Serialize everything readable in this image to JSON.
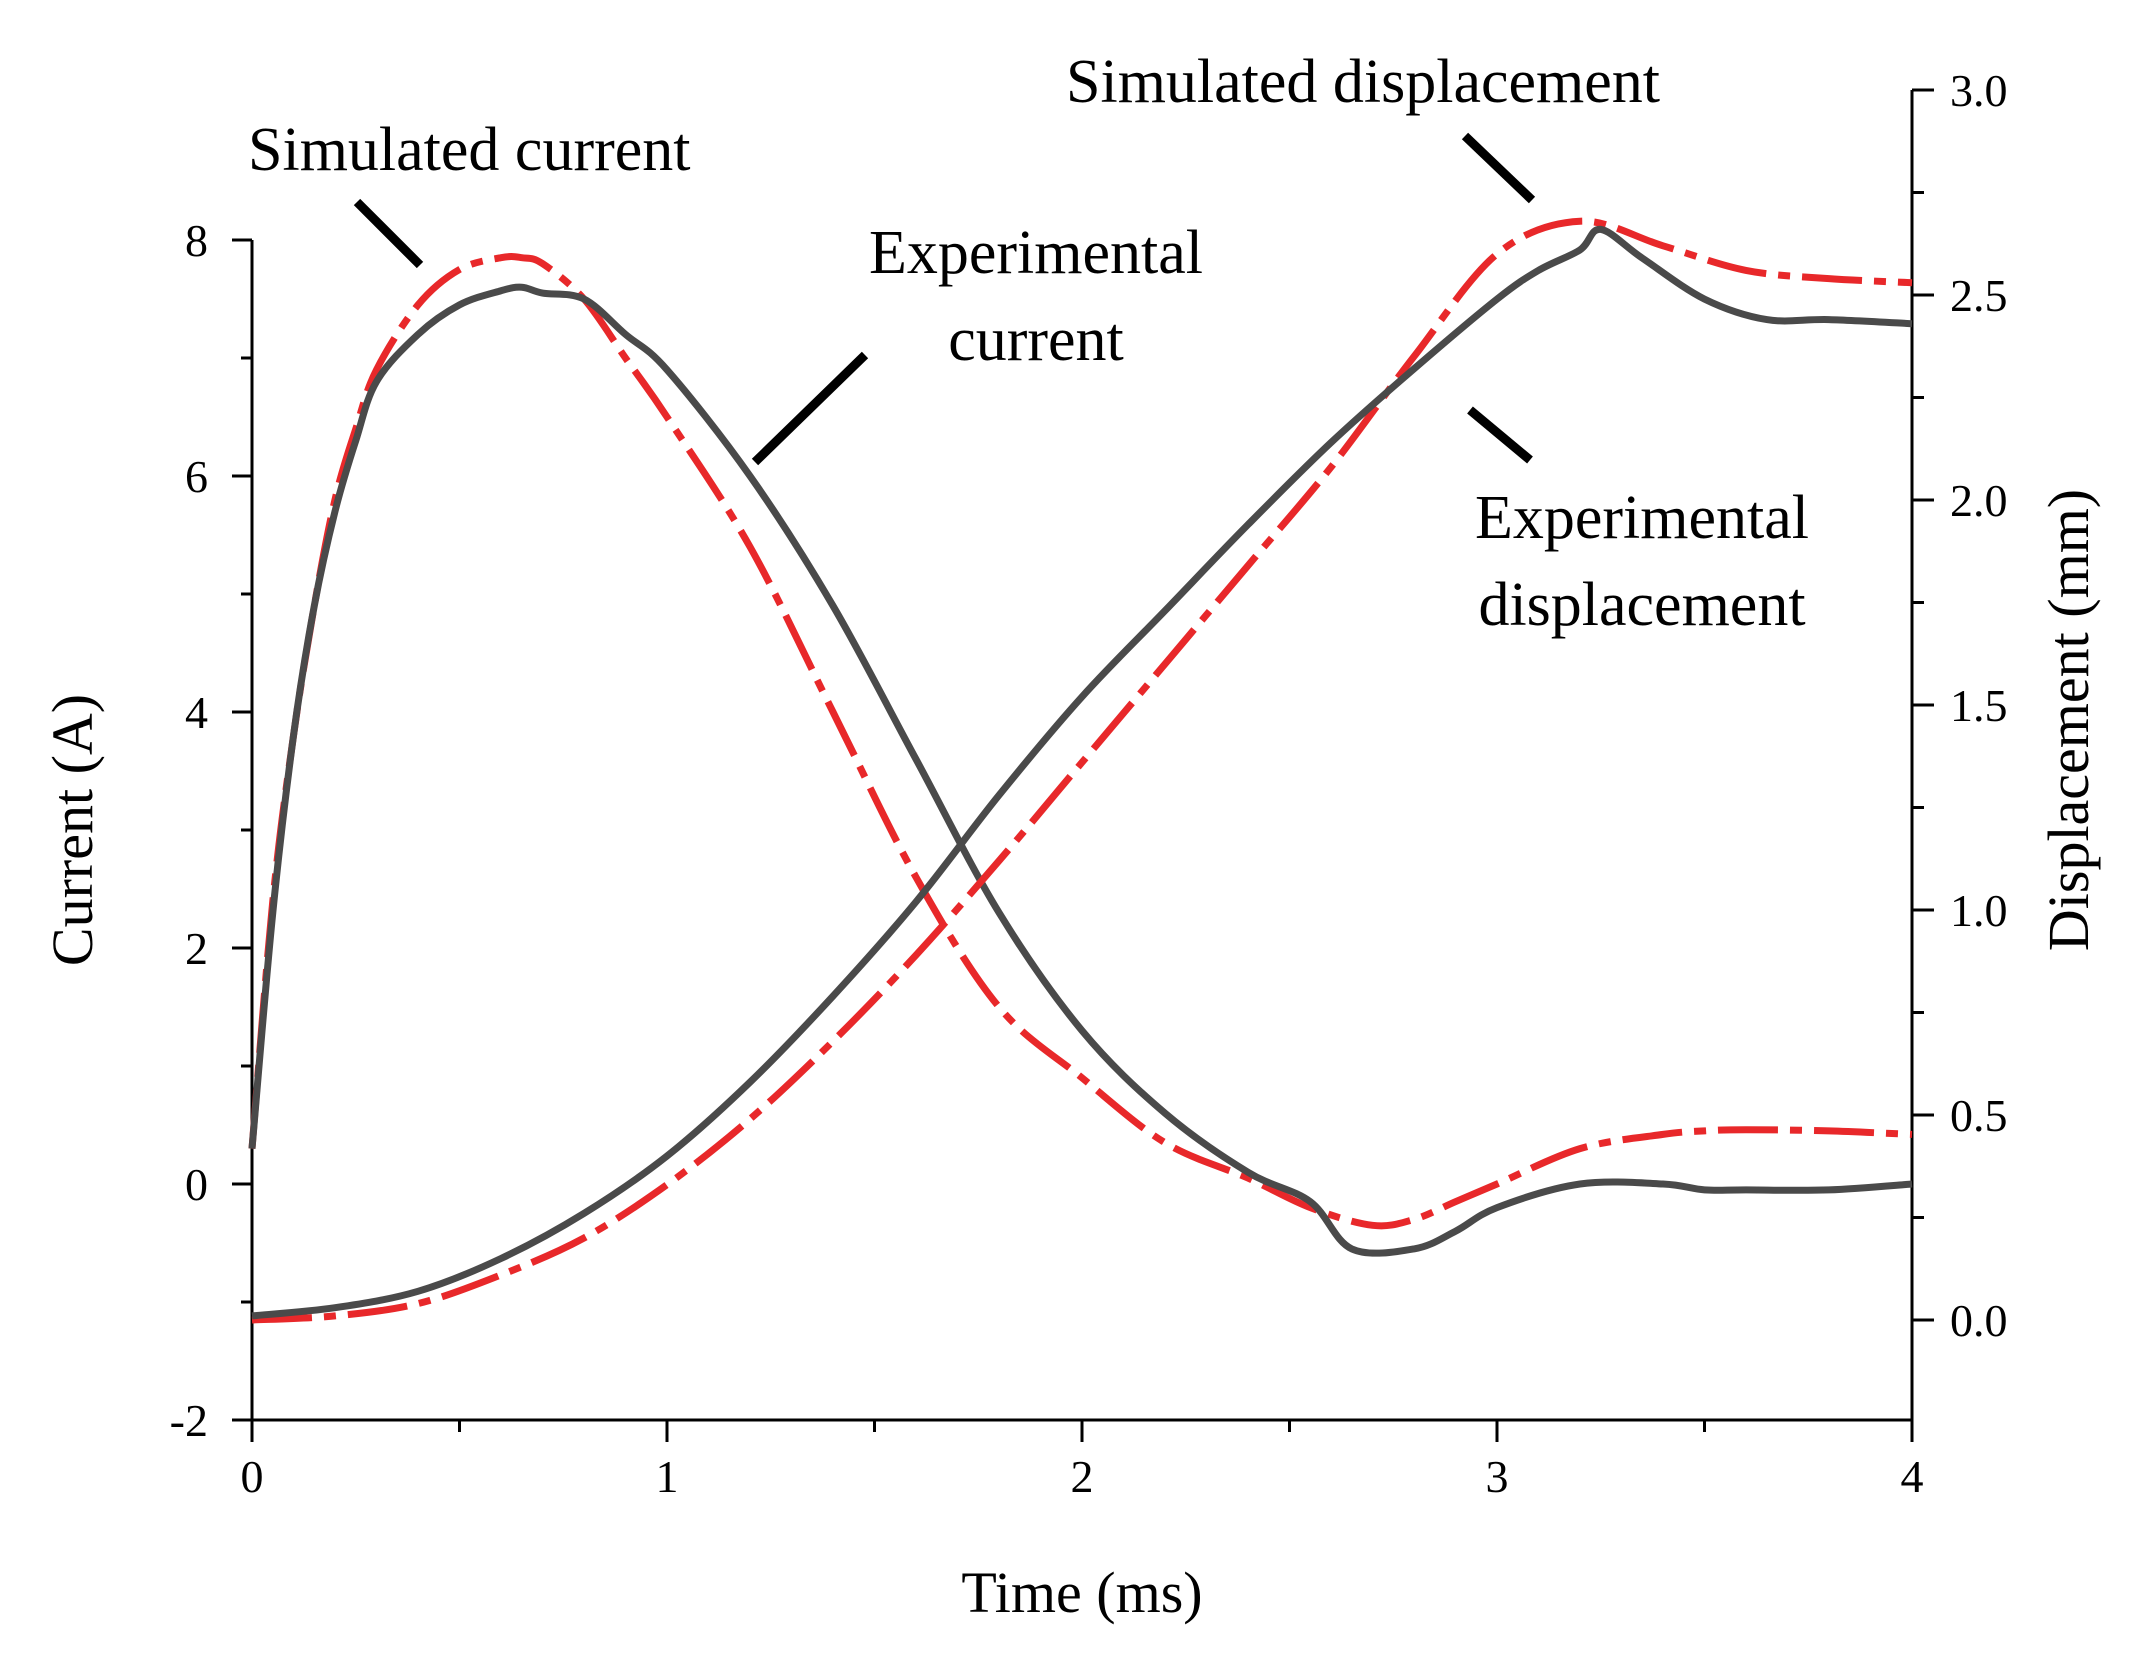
{
  "chart_data": {
    "type": "line",
    "title": "",
    "xlabel": "Time (ms)",
    "ylabel_left": "Current (A)",
    "ylabel_right": "Displacement (mm)",
    "xlim": [
      0,
      4
    ],
    "ylim_left": [
      -2,
      8
    ],
    "ylim_right": [
      -0.25,
      3.0
    ],
    "x_ticks": [
      0,
      1,
      2,
      3,
      4
    ],
    "x_tick_labels": [
      "0",
      "1",
      "2",
      "3",
      "4"
    ],
    "left_ticks": [
      -2,
      0,
      2,
      4,
      6,
      8
    ],
    "left_tick_labels": [
      "-2",
      "0",
      "2",
      "4",
      "6",
      "8"
    ],
    "right_ticks": [
      0.0,
      0.5,
      1.0,
      1.5,
      2.0,
      2.5,
      3.0
    ],
    "right_tick_labels": [
      "0.0",
      "0.5",
      "1.0",
      "1.5",
      "2.0",
      "2.5",
      "3.0"
    ],
    "grid": false,
    "series": [
      {
        "name": "Simulated current",
        "axis": "left",
        "style": "dash-dot",
        "color": "#e8282a",
        "x": [
          0,
          0.05,
          0.1,
          0.15,
          0.2,
          0.25,
          0.3,
          0.4,
          0.5,
          0.6,
          0.65,
          0.7,
          0.8,
          0.9,
          1.0,
          1.2,
          1.4,
          1.6,
          1.8,
          2.0,
          2.2,
          2.4,
          2.55,
          2.7,
          2.8,
          2.9,
          3.0,
          3.2,
          3.4,
          3.5,
          3.6,
          3.8,
          4.0
        ],
        "values": [
          0.3,
          2.4,
          3.8,
          4.9,
          5.8,
          6.4,
          6.9,
          7.45,
          7.75,
          7.85,
          7.85,
          7.8,
          7.5,
          7.0,
          6.5,
          5.4,
          4.0,
          2.6,
          1.5,
          0.9,
          0.35,
          0.05,
          -0.2,
          -0.35,
          -0.3,
          -0.15,
          0.0,
          0.3,
          0.42,
          0.45,
          0.46,
          0.45,
          0.42
        ]
      },
      {
        "name": "Experimental current",
        "axis": "left",
        "style": "solid",
        "color": "#4a4a4a",
        "x": [
          0,
          0.05,
          0.1,
          0.15,
          0.2,
          0.25,
          0.3,
          0.4,
          0.5,
          0.6,
          0.65,
          0.7,
          0.8,
          0.9,
          1.0,
          1.2,
          1.4,
          1.6,
          1.8,
          2.0,
          2.2,
          2.4,
          2.55,
          2.65,
          2.8,
          2.9,
          3.0,
          3.2,
          3.4,
          3.5,
          3.6,
          3.8,
          4.0
        ],
        "values": [
          0.3,
          2.3,
          3.8,
          4.9,
          5.7,
          6.3,
          6.8,
          7.2,
          7.45,
          7.57,
          7.6,
          7.55,
          7.5,
          7.2,
          6.9,
          6.0,
          4.9,
          3.6,
          2.3,
          1.3,
          0.6,
          0.1,
          -0.15,
          -0.55,
          -0.55,
          -0.4,
          -0.2,
          0.0,
          0.0,
          -0.05,
          -0.05,
          -0.05,
          0.0
        ]
      },
      {
        "name": "Simulated displacement",
        "axis": "right",
        "style": "dash-dot",
        "color": "#e8282a",
        "x": [
          0,
          0.2,
          0.4,
          0.6,
          0.8,
          1.0,
          1.2,
          1.4,
          1.6,
          1.8,
          2.0,
          2.2,
          2.4,
          2.6,
          2.8,
          3.0,
          3.2,
          3.4,
          3.6,
          3.8,
          4.0
        ],
        "values": [
          0.0,
          0.01,
          0.04,
          0.11,
          0.2,
          0.33,
          0.49,
          0.68,
          0.89,
          1.12,
          1.36,
          1.6,
          1.84,
          2.08,
          2.35,
          2.6,
          2.68,
          2.62,
          2.56,
          2.54,
          2.53
        ]
      },
      {
        "name": "Experimental displacement",
        "axis": "right",
        "style": "solid",
        "color": "#4a4a4a",
        "x": [
          0,
          0.2,
          0.4,
          0.6,
          0.8,
          1.0,
          1.2,
          1.4,
          1.6,
          1.8,
          2.0,
          2.2,
          2.4,
          2.6,
          2.8,
          3.0,
          3.1,
          3.2,
          3.25,
          3.35,
          3.5,
          3.65,
          3.8,
          4.0
        ],
        "values": [
          0.01,
          0.03,
          0.07,
          0.15,
          0.26,
          0.4,
          0.58,
          0.79,
          1.02,
          1.28,
          1.52,
          1.73,
          1.94,
          2.14,
          2.32,
          2.49,
          2.56,
          2.61,
          2.66,
          2.59,
          2.49,
          2.44,
          2.44,
          2.43
        ]
      }
    ],
    "annotations": [
      {
        "text": "Simulated current",
        "target": "Simulated current"
      },
      {
        "text": "Experimental",
        "target": "Experimental current"
      },
      {
        "text": "current",
        "target": "Experimental current"
      },
      {
        "text": "Simulated displacement",
        "target": "Simulated displacement"
      },
      {
        "text": "Experimental",
        "target": "Experimental displacement"
      },
      {
        "text": "displacement",
        "target": "Experimental displacement"
      }
    ]
  }
}
